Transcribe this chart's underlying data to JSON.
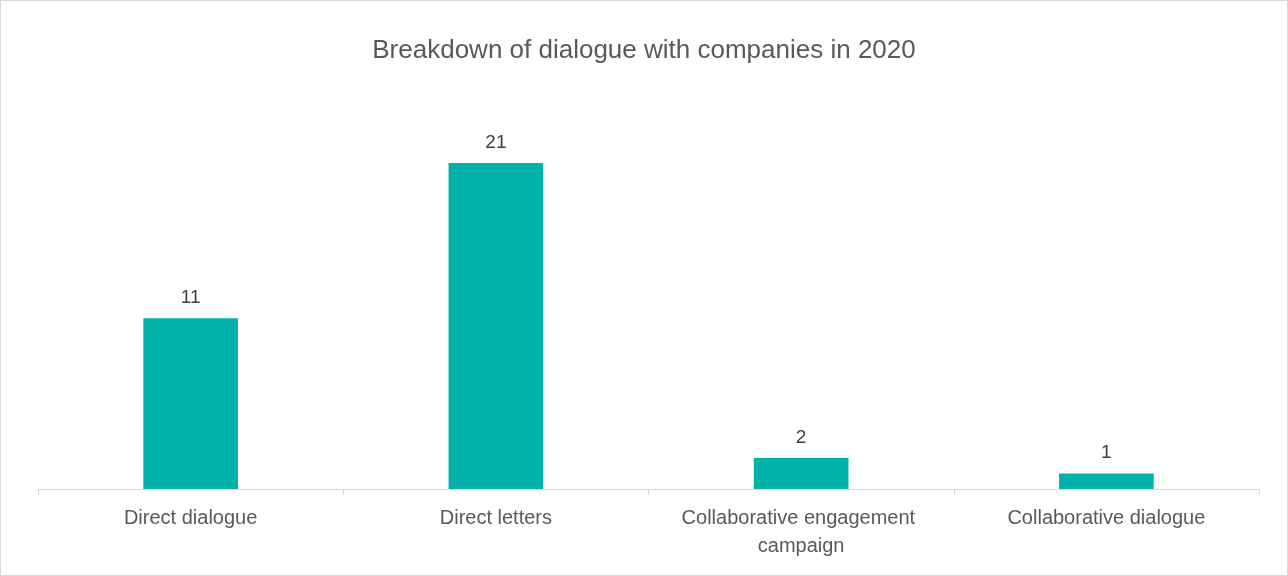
{
  "chart_data": {
    "type": "bar",
    "title": "Breakdown of dialogue with companies in 2020",
    "categories": [
      "Direct dialogue",
      "Direct letters",
      "Collaborative engagement campaign",
      "Collaborative dialogue"
    ],
    "values": [
      11,
      21,
      2,
      1
    ],
    "color": "#00b2a9",
    "data_labels": true
  }
}
